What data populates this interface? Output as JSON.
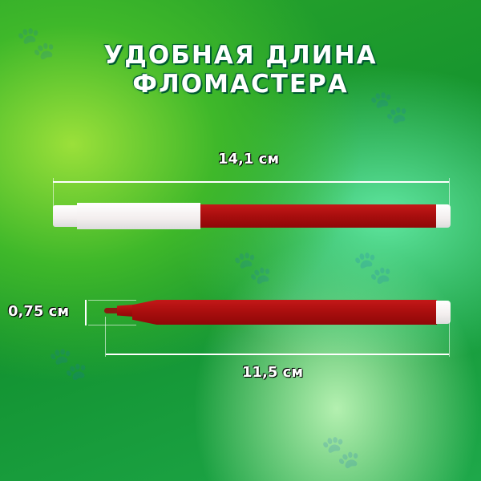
{
  "title": {
    "line1": "УДОБНАЯ ДЛИНА",
    "line2": "ФЛОМАСТЕРА"
  },
  "dimensions": {
    "total_length": "14,1 см",
    "diameter": "0,75 см",
    "body_length": "11,5 см"
  },
  "colors": {
    "marker_body": "#b01010",
    "cap": "#f5f2f2",
    "background": "#1e9e35"
  }
}
